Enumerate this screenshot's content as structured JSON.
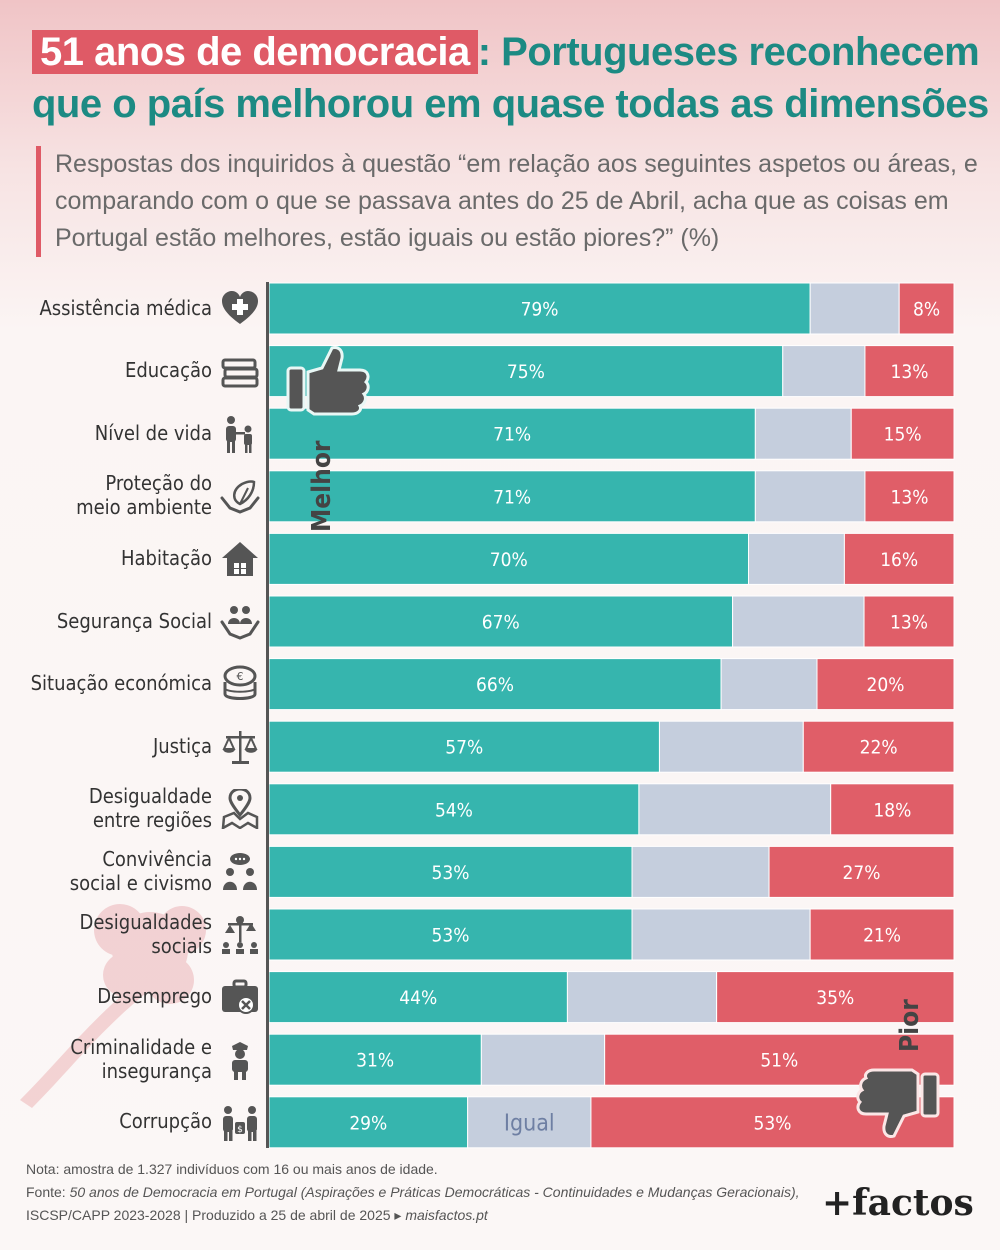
{
  "title": {
    "highlight": "51 anos de democracia",
    "rest_line1": ": Portugueses reconhecem",
    "line2": "que o país melhorou em quase todas as dimensões"
  },
  "subtitle": "Respostas dos inquiridos à questão “em relação aos seguintes aspetos ou áreas, e comparando com o que se passava antes do 25 de Abril, acha que as coisas em Portugal estão melhores, estão iguais ou estão piores?” (%)",
  "annotations": {
    "better": "Melhor",
    "same": "Igual",
    "worse": "Pior"
  },
  "colors": {
    "better": "#36b5ae",
    "same": "#c5cedd",
    "worse": "#e05e68",
    "title_green": "#1c8a83",
    "title_red": "#df5a66"
  },
  "chart_data": {
    "type": "bar",
    "orientation": "horizontal",
    "stacked": true,
    "categories": [
      "Assistência médica",
      "Educação",
      "Nível de vida",
      "Proteção do meio ambiente",
      "Habitação",
      "Segurança Social",
      "Situação económica",
      "Justiça",
      "Desigualdade entre regiões",
      "Convivência social e civismo",
      "Desigualdades sociais",
      "Desemprego",
      "Criminalidade e insegurança",
      "Corrupção"
    ],
    "series": [
      {
        "name": "Melhor",
        "values": [
          79,
          75,
          71,
          71,
          70,
          67,
          66,
          57,
          54,
          53,
          53,
          44,
          31,
          29
        ]
      },
      {
        "name": "Igual",
        "values": [
          13,
          12,
          14,
          16,
          14,
          19,
          14,
          21,
          28,
          20,
          26,
          22,
          18,
          18
        ]
      },
      {
        "name": "Pior",
        "values": [
          8,
          13,
          15,
          13,
          16,
          13,
          20,
          22,
          18,
          27,
          21,
          35,
          51,
          53
        ]
      }
    ],
    "xlim": [
      0,
      100
    ],
    "unit": "%"
  },
  "rows": [
    {
      "label_lines": [
        "Assistência médica"
      ],
      "icon": "heart-medical-icon"
    },
    {
      "label_lines": [
        "Educação"
      ],
      "icon": "books-icon"
    },
    {
      "label_lines": [
        "Nível de vida"
      ],
      "icon": "family-icon"
    },
    {
      "label_lines": [
        "Proteção do",
        "meio ambiente"
      ],
      "icon": "hands-leaf-icon"
    },
    {
      "label_lines": [
        "Habitação"
      ],
      "icon": "house-icon"
    },
    {
      "label_lines": [
        "Segurança Social"
      ],
      "icon": "hands-people-icon"
    },
    {
      "label_lines": [
        "Situação económica"
      ],
      "icon": "coins-icon"
    },
    {
      "label_lines": [
        "Justiça"
      ],
      "icon": "scales-icon"
    },
    {
      "label_lines": [
        "Desigualdade",
        "entre regiões"
      ],
      "icon": "map-pin-icon"
    },
    {
      "label_lines": [
        "Convivência",
        "social e civismo"
      ],
      "icon": "people-chat-icon"
    },
    {
      "label_lines": [
        "Desigualdades",
        "sociais"
      ],
      "icon": "inequality-icon"
    },
    {
      "label_lines": [
        "Desemprego"
      ],
      "icon": "briefcase-x-icon"
    },
    {
      "label_lines": [
        "Criminalidade e",
        "insegurança"
      ],
      "icon": "police-icon"
    },
    {
      "label_lines": [
        "Corrupção"
      ],
      "icon": "bribe-icon"
    }
  ],
  "footer": {
    "note": "Nota: amostra de 1.327 indivíduos com 16 ou mais anos de idade.",
    "source_prefix": "Fonte: ",
    "source_title": "50 anos de Democracia em Portugal (Aspirações e Práticas Democráticas - Continuidades e Mudanças Geracionais),",
    "line3_prefix": "ISCSP/CAPP 2023-2028 | Produzido a 25 de abril de 2025 ▸ ",
    "line3_site": "maisfactos.pt"
  },
  "logo": "+factos"
}
